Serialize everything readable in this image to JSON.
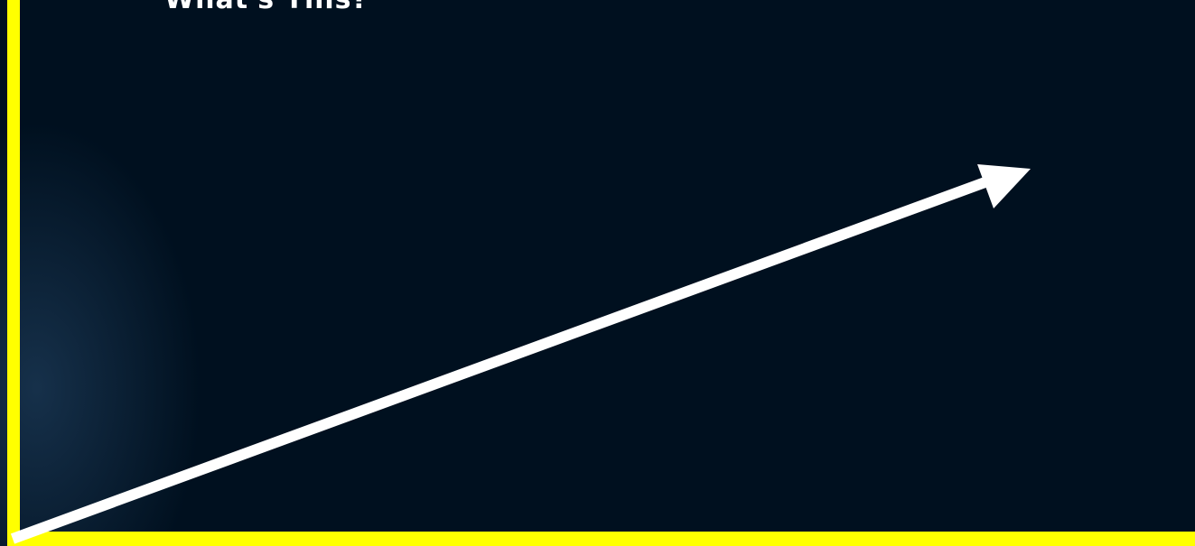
{
  "slide": {
    "title": "What's This?"
  },
  "colors": {
    "background": "#00101f",
    "axis": "#ffff00",
    "arrow": "#ffffff",
    "title": "#ffffff"
  },
  "icons": {
    "arrow": "arrow-icon"
  }
}
